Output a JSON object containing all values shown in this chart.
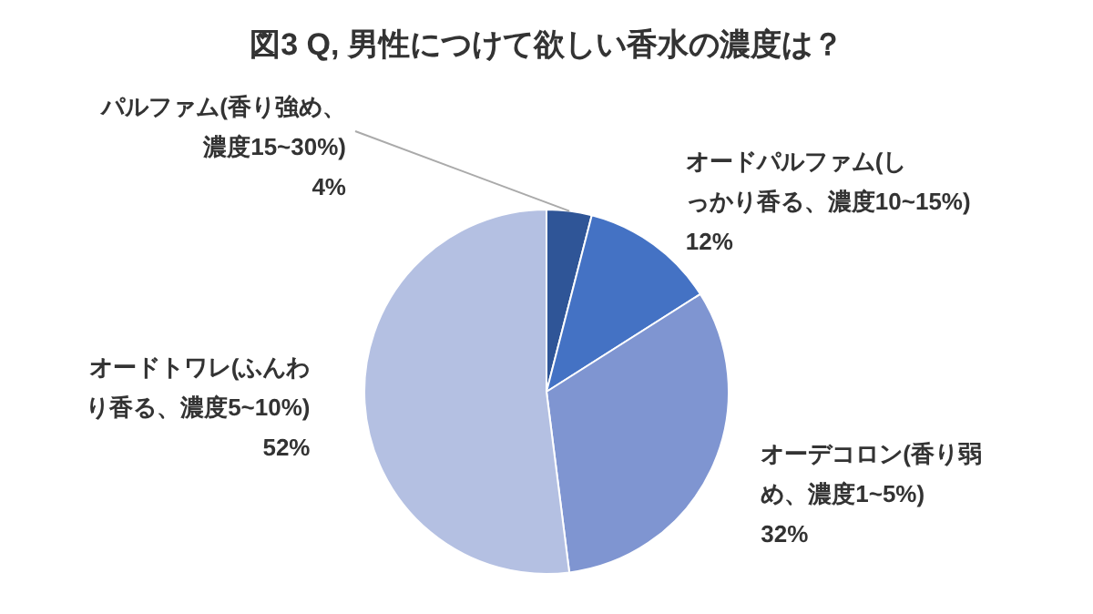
{
  "chart_data": {
    "type": "pie",
    "title": "図3 Q, 男性につけて欲しい香水の濃度は？",
    "categories": [
      "パルファム(香り強め、濃度15~30%)",
      "オードパルファム(しっかり香る、濃度10~15%)",
      "オーデコロン(香り弱め、濃度1~5%)",
      "オードトワレ(ふんわり香る、濃度5~10%)"
    ],
    "values": [
      4,
      12,
      32,
      52
    ],
    "value_labels": [
      "4%",
      "12%",
      "32%",
      "52%"
    ],
    "colors": [
      "#2f5597",
      "#4472c4",
      "#7f95d1",
      "#b4c0e2"
    ]
  }
}
